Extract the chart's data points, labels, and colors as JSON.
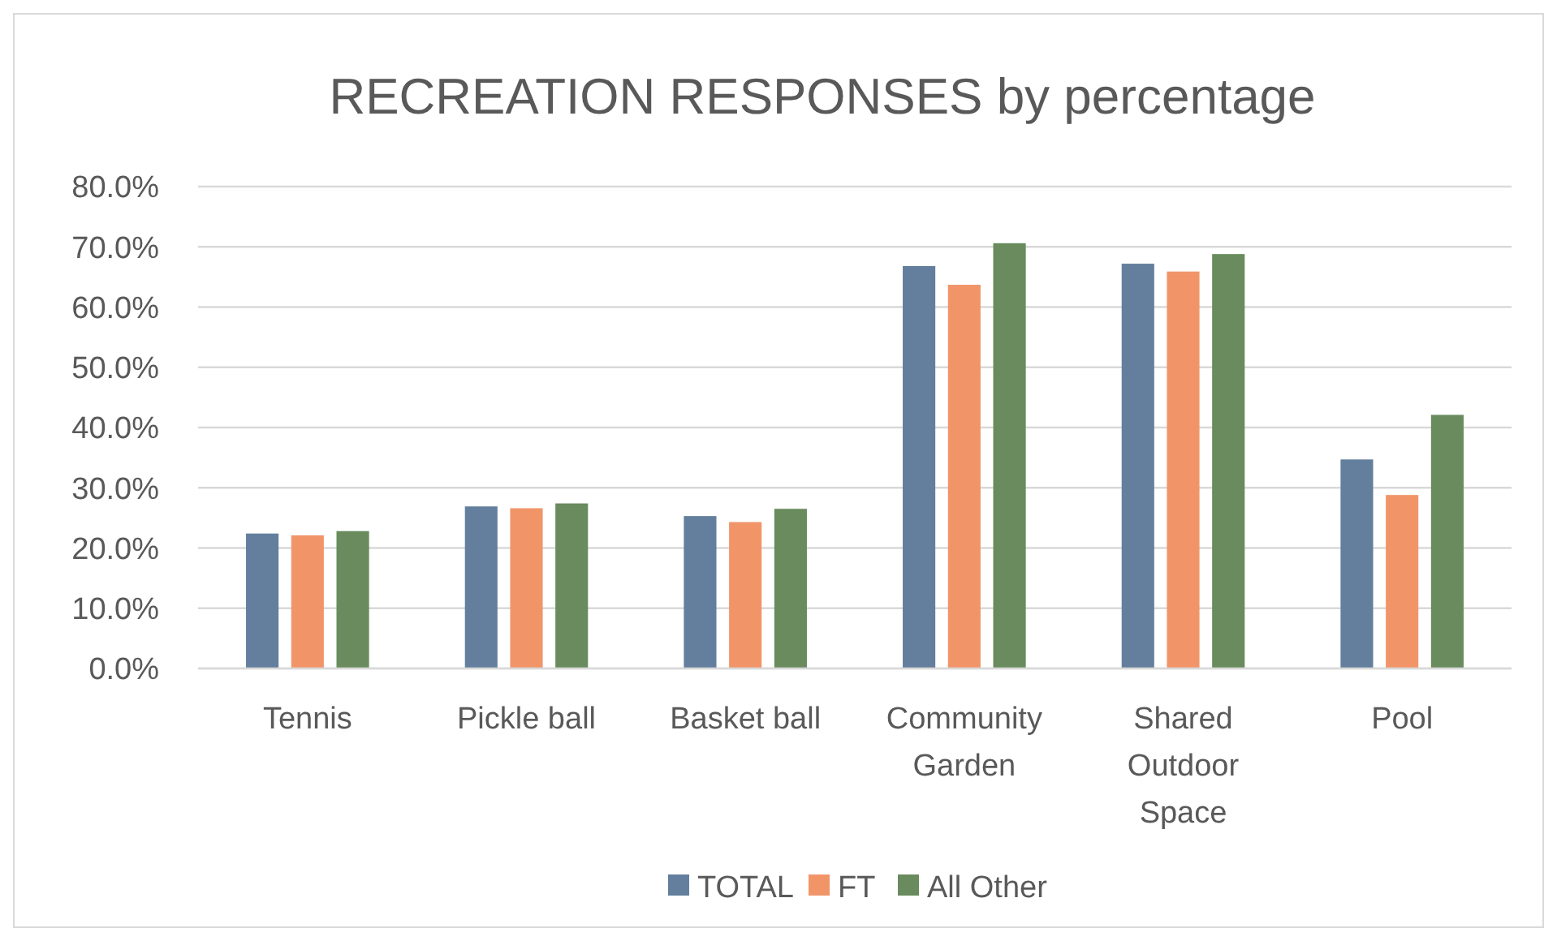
{
  "chart_data": {
    "type": "bar",
    "title": "RECREATION RESPONSES by percentage",
    "categories": [
      "Tennis",
      "Pickle ball",
      "Basket ball",
      "Community Garden",
      "Shared Outdoor Space",
      "Pool"
    ],
    "series": [
      {
        "name": "TOTAL",
        "color": "#637f9d",
        "values": [
          22.4,
          26.9,
          25.3,
          66.8,
          67.2,
          34.7
        ]
      },
      {
        "name": "FT",
        "color": "#f19569",
        "values": [
          22.1,
          26.6,
          24.3,
          63.7,
          65.9,
          28.8
        ]
      },
      {
        "name": "All Other",
        "color": "#698b5d",
        "values": [
          22.8,
          27.4,
          26.5,
          70.6,
          68.8,
          42.1
        ]
      }
    ],
    "ylim": [
      0,
      80
    ],
    "yticks": [
      {
        "value": 0,
        "label": "0.0%"
      },
      {
        "value": 10,
        "label": "10.0%"
      },
      {
        "value": 20,
        "label": "20.0%"
      },
      {
        "value": 30,
        "label": "30.0%"
      },
      {
        "value": 40,
        "label": "40.0%"
      },
      {
        "value": 50,
        "label": "50.0%"
      },
      {
        "value": 60,
        "label": "60.0%"
      },
      {
        "value": 70,
        "label": "70.0%"
      },
      {
        "value": 80,
        "label": "80.0%"
      }
    ],
    "grid": "y",
    "legend": "bottom"
  }
}
